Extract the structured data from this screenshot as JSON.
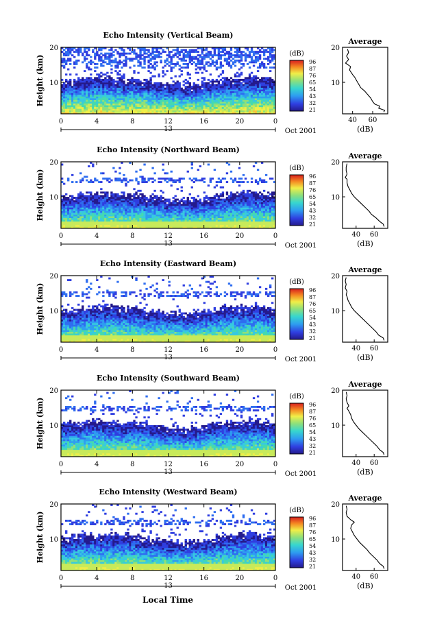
{
  "figure": {
    "xlabel_bottom": "Local Time",
    "date_label": "Oct 2001",
    "day_marker": "13",
    "avg_title": "Average",
    "avg_xlabel": "(dB)",
    "colorbar_unit": "(dB)"
  },
  "chart_data": [
    {
      "type": "heatmap",
      "title": "Echo Intensity (Vertical Beam)",
      "ylabel": "Height (km)",
      "x_ticks": [
        "0",
        "4",
        "8",
        "12",
        "16",
        "20",
        "0"
      ],
      "y_ticks": [
        "10",
        "20"
      ],
      "xlim": [
        0,
        24
      ],
      "ylim": [
        1,
        20
      ],
      "colorbar_ticks": [
        "96",
        "87",
        "76",
        "65",
        "54",
        "43",
        "32",
        "21"
      ],
      "average": {
        "x_ticks": [
          "40",
          "60"
        ],
        "y_ticks": [
          "10",
          "20"
        ],
        "xlim": [
          30,
          75
        ],
        "profile": [
          [
            71,
            1.5
          ],
          [
            72,
            2
          ],
          [
            66,
            2.6
          ],
          [
            67,
            3.2
          ],
          [
            62,
            3.8
          ],
          [
            60,
            4.5
          ],
          [
            58,
            5.5
          ],
          [
            55,
            6.5
          ],
          [
            52,
            7.5
          ],
          [
            48,
            8.5
          ],
          [
            46,
            9.5
          ],
          [
            44,
            10.5
          ],
          [
            42,
            11.5
          ],
          [
            40,
            12.2
          ],
          [
            37,
            13.5
          ],
          [
            38,
            14.5
          ],
          [
            33,
            15.5
          ],
          [
            36,
            16.5
          ],
          [
            34,
            17.5
          ],
          [
            36,
            18.5
          ],
          [
            35,
            19.5
          ]
        ]
      }
    },
    {
      "type": "heatmap",
      "title": "Echo Intensity (Northward Beam)",
      "ylabel": "Height (km)",
      "x_ticks": [
        "0",
        "4",
        "8",
        "12",
        "16",
        "20",
        "0"
      ],
      "y_ticks": [
        "10",
        "20"
      ],
      "xlim": [
        0,
        24
      ],
      "ylim": [
        1,
        20
      ],
      "colorbar_ticks": [
        "96",
        "87",
        "76",
        "65",
        "54",
        "43",
        "32",
        "21"
      ],
      "average": {
        "x_ticks": [
          "40",
          "60"
        ],
        "y_ticks": [
          "10",
          "20"
        ],
        "xlim": [
          25,
          75
        ],
        "profile": [
          [
            71,
            1.5
          ],
          [
            70,
            2.2
          ],
          [
            66,
            3
          ],
          [
            62,
            4
          ],
          [
            57,
            5
          ],
          [
            54,
            6
          ],
          [
            50,
            7
          ],
          [
            46,
            8
          ],
          [
            42,
            9
          ],
          [
            38,
            10
          ],
          [
            35,
            11
          ],
          [
            33,
            12
          ],
          [
            31,
            13
          ],
          [
            30,
            14
          ],
          [
            30,
            15
          ],
          [
            28,
            15.5
          ],
          [
            30,
            16.5
          ],
          [
            29,
            17.5
          ],
          [
            29,
            18.5
          ],
          [
            30,
            19.5
          ]
        ]
      }
    },
    {
      "type": "heatmap",
      "title": "Echo Intensity (Eastward Beam)",
      "ylabel": "Height (km)",
      "x_ticks": [
        "0",
        "4",
        "8",
        "12",
        "16",
        "20",
        "0"
      ],
      "y_ticks": [
        "10",
        "20"
      ],
      "xlim": [
        0,
        24
      ],
      "ylim": [
        1,
        20
      ],
      "colorbar_ticks": [
        "96",
        "87",
        "76",
        "65",
        "54",
        "43",
        "32",
        "21"
      ],
      "average": {
        "x_ticks": [
          "40",
          "60"
        ],
        "y_ticks": [
          "10",
          "20"
        ],
        "xlim": [
          25,
          75
        ],
        "profile": [
          [
            71,
            1.5
          ],
          [
            70,
            2.2
          ],
          [
            65,
            3
          ],
          [
            62,
            4
          ],
          [
            58,
            5
          ],
          [
            54,
            6
          ],
          [
            50,
            7
          ],
          [
            46,
            8
          ],
          [
            42,
            9
          ],
          [
            38,
            10
          ],
          [
            35,
            11
          ],
          [
            33,
            12
          ],
          [
            31,
            13
          ],
          [
            30,
            14
          ],
          [
            29,
            14.5
          ],
          [
            30,
            15.5
          ],
          [
            28,
            16.5
          ],
          [
            29,
            17.5
          ],
          [
            28,
            18.5
          ],
          [
            29,
            19.5
          ]
        ]
      }
    },
    {
      "type": "heatmap",
      "title": "Echo Intensity (Southward Beam)",
      "ylabel": "Height (km)",
      "x_ticks": [
        "0",
        "4",
        "8",
        "12",
        "16",
        "20",
        "0"
      ],
      "y_ticks": [
        "10",
        "20"
      ],
      "xlim": [
        0,
        24
      ],
      "ylim": [
        1,
        20
      ],
      "colorbar_ticks": [
        "96",
        "87",
        "76",
        "65",
        "54",
        "43",
        "32",
        "21"
      ],
      "average": {
        "x_ticks": [
          "40",
          "60"
        ],
        "y_ticks": [
          "10",
          "20"
        ],
        "xlim": [
          25,
          75
        ],
        "profile": [
          [
            71,
            1.5
          ],
          [
            70,
            2.2
          ],
          [
            66,
            3
          ],
          [
            63,
            4
          ],
          [
            59,
            5
          ],
          [
            55,
            6
          ],
          [
            51,
            7
          ],
          [
            47,
            8
          ],
          [
            43,
            9
          ],
          [
            40,
            10
          ],
          [
            37,
            11
          ],
          [
            35,
            12
          ],
          [
            34,
            13
          ],
          [
            32,
            14
          ],
          [
            30,
            14.8
          ],
          [
            32,
            15.5
          ],
          [
            30,
            16.5
          ],
          [
            29,
            17.5
          ],
          [
            30,
            18.5
          ],
          [
            29,
            19.5
          ]
        ]
      }
    },
    {
      "type": "heatmap",
      "title": "Echo Intensity (Westward Beam)",
      "ylabel": "Height (km)",
      "x_ticks": [
        "0",
        "4",
        "8",
        "12",
        "16",
        "20",
        "0"
      ],
      "y_ticks": [
        "10",
        "20"
      ],
      "xlim": [
        0,
        24
      ],
      "ylim": [
        1,
        20
      ],
      "colorbar_ticks": [
        "96",
        "87",
        "76",
        "65",
        "54",
        "43",
        "32",
        "21"
      ],
      "average": {
        "x_ticks": [
          "40",
          "60"
        ],
        "y_ticks": [
          "10",
          "20"
        ],
        "xlim": [
          25,
          75
        ],
        "profile": [
          [
            71,
            1.5
          ],
          [
            70,
            2.2
          ],
          [
            66,
            3
          ],
          [
            63,
            4
          ],
          [
            59,
            5
          ],
          [
            55,
            6
          ],
          [
            52,
            7
          ],
          [
            48,
            8
          ],
          [
            44,
            9
          ],
          [
            41,
            10
          ],
          [
            38,
            11
          ],
          [
            36,
            12
          ],
          [
            34,
            13
          ],
          [
            35,
            14
          ],
          [
            38,
            14.8
          ],
          [
            34,
            15.5
          ],
          [
            30,
            16.5
          ],
          [
            29,
            17.5
          ],
          [
            30,
            18.5
          ],
          [
            29,
            19.5
          ]
        ]
      }
    }
  ]
}
